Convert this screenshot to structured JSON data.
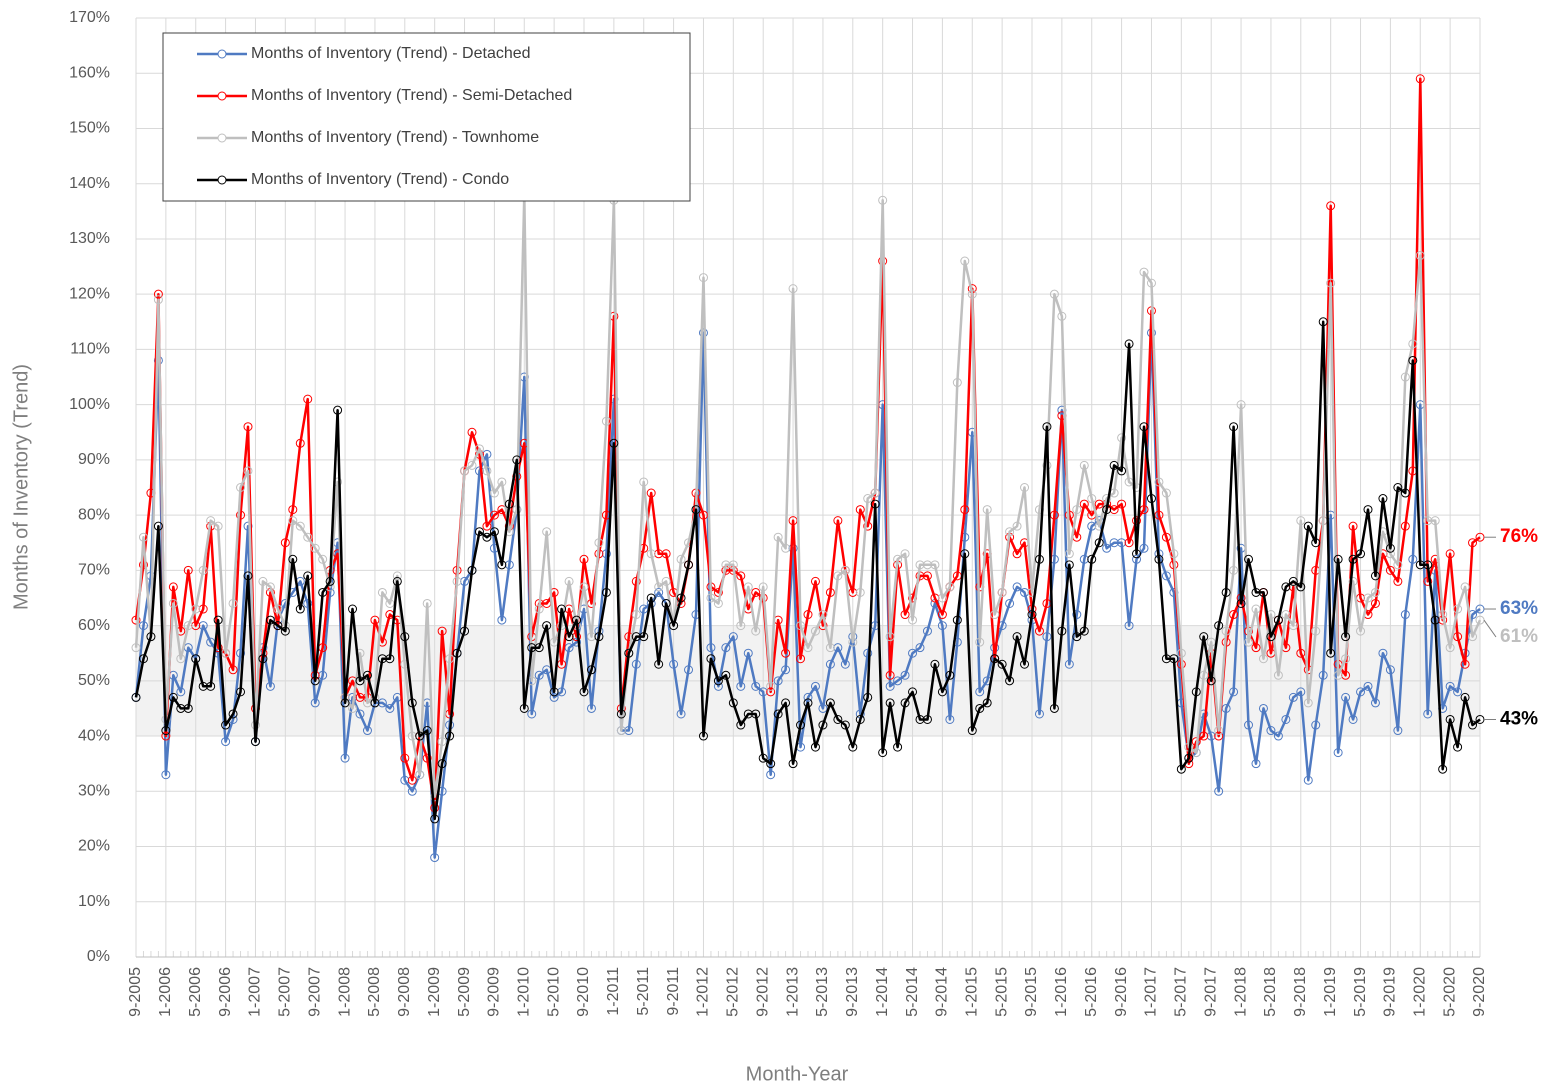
{
  "chart_data": {
    "type": "line",
    "y_label": "Months of Inventory (Trend)",
    "x_label": "Month-Year",
    "ylim": [
      0,
      170
    ],
    "yticks": [
      {
        "value": 0,
        "label": "0%"
      },
      {
        "value": 10,
        "label": "10%"
      },
      {
        "value": 20,
        "label": "20%"
      },
      {
        "value": 30,
        "label": "30%"
      },
      {
        "value": 40,
        "label": "40%"
      },
      {
        "value": 50,
        "label": "50%"
      },
      {
        "value": 60,
        "label": "60%"
      },
      {
        "value": 70,
        "label": "70%"
      },
      {
        "value": 80,
        "label": "80%"
      },
      {
        "value": 90,
        "label": "90%"
      },
      {
        "value": 100,
        "label": "100%"
      },
      {
        "value": 110,
        "label": "110%"
      },
      {
        "value": 120,
        "label": "120%"
      },
      {
        "value": 130,
        "label": "130%"
      },
      {
        "value": 140,
        "label": "140%"
      },
      {
        "value": 150,
        "label": "150%"
      },
      {
        "value": 160,
        "label": "160%"
      },
      {
        "value": 170,
        "label": "170%"
      }
    ],
    "grid": true,
    "legend": "upper left",
    "shaded_band": [
      40,
      60
    ],
    "categories": [
      "9-2005",
      null,
      null,
      null,
      "1-2006",
      null,
      null,
      null,
      "5-2006",
      null,
      null,
      null,
      "9-2006",
      null,
      null,
      null,
      "1-2007",
      null,
      null,
      null,
      "5-2007",
      null,
      null,
      null,
      "9-2007",
      null,
      null,
      null,
      "1-2008",
      null,
      null,
      null,
      "5-2008",
      null,
      null,
      null,
      "9-2008",
      null,
      null,
      null,
      "1-2009",
      null,
      null,
      null,
      "5-2009",
      null,
      null,
      null,
      "9-2009",
      null,
      null,
      null,
      "1-2010",
      null,
      null,
      null,
      "5-2010",
      null,
      null,
      null,
      "9-2010",
      null,
      null,
      null,
      "1-2011",
      null,
      null,
      null,
      "5-2011",
      null,
      null,
      null,
      "9-2011",
      null,
      null,
      null,
      "1-2012",
      null,
      null,
      null,
      "5-2012",
      null,
      null,
      null,
      "9-2012",
      null,
      null,
      null,
      "1-2013",
      null,
      null,
      null,
      "5-2013",
      null,
      null,
      null,
      "9-2013",
      null,
      null,
      null,
      "1-2014",
      null,
      null,
      null,
      "5-2014",
      null,
      null,
      null,
      "9-2014",
      null,
      null,
      null,
      "1-2015",
      null,
      null,
      null,
      "5-2015",
      null,
      null,
      null,
      "9-2015",
      null,
      null,
      null,
      "1-2016",
      null,
      null,
      null,
      "5-2016",
      null,
      null,
      null,
      "9-2016",
      null,
      null,
      null,
      "1-2017",
      null,
      null,
      null,
      "5-2017",
      null,
      null,
      null,
      "9-2017",
      null,
      null,
      null,
      "1-2018",
      null,
      null,
      null,
      "5-2018",
      null,
      null,
      null,
      "9-2018",
      null,
      null,
      null,
      "1-2019",
      null,
      null,
      null,
      "5-2019",
      null,
      null,
      null,
      "9-2019",
      null,
      null,
      null,
      "1-2020",
      null,
      null,
      null,
      "5-2020",
      null,
      null,
      null,
      "9-2020"
    ],
    "series": [
      {
        "name": "Months of Inventory (Trend) - Detached",
        "color": "#4f7ac2",
        "end_label": "63%",
        "values": [
          47,
          60,
          69,
          108,
          33,
          51,
          48,
          56,
          54,
          60,
          57,
          55,
          39,
          43,
          55,
          78,
          39,
          56,
          49,
          61,
          64,
          66,
          68,
          64,
          46,
          51,
          66,
          75,
          36,
          47,
          44,
          41,
          46,
          46,
          45,
          47,
          32,
          30,
          33,
          46,
          18,
          30,
          42,
          55,
          68,
          70,
          88,
          91,
          74,
          61,
          71,
          81,
          105,
          44,
          51,
          52,
          47,
          48,
          56,
          57,
          63,
          45,
          59,
          73,
          101,
          41,
          41,
          53,
          63,
          64,
          66,
          64,
          53,
          44,
          52,
          62,
          113,
          56,
          49,
          56,
          58,
          49,
          55,
          49,
          48,
          33,
          50,
          52,
          74,
          38,
          47,
          49,
          45,
          53,
          56,
          53,
          58,
          44,
          55,
          60,
          100,
          49,
          50,
          51,
          55,
          56,
          59,
          64,
          60,
          43,
          57,
          76,
          95,
          48,
          50,
          56,
          60,
          64,
          67,
          66,
          61,
          44,
          58,
          72,
          99,
          53,
          62,
          72,
          78,
          79,
          74,
          75,
          75,
          60,
          72,
          74,
          113,
          73,
          69,
          66,
          46,
          36,
          37,
          44,
          40,
          30,
          45,
          48,
          74,
          42,
          35,
          45,
          41,
          40,
          43,
          47,
          48,
          32,
          42,
          51,
          80,
          37,
          47,
          43,
          48,
          49,
          46,
          55,
          52,
          41,
          62,
          72,
          100,
          44,
          70,
          45,
          49,
          48,
          55,
          62,
          63
        ]
      },
      {
        "name": "Months of Inventory (Trend) - Semi-Detached",
        "color": "#ff0000",
        "end_label": "76%",
        "values": [
          61,
          71,
          84,
          120,
          40,
          67,
          59,
          70,
          60,
          63,
          78,
          56,
          55,
          52,
          80,
          96,
          45,
          55,
          66,
          60,
          75,
          81,
          93,
          101,
          51,
          56,
          70,
          73,
          47,
          50,
          47,
          47,
          61,
          57,
          62,
          61,
          36,
          32,
          40,
          36,
          27,
          59,
          44,
          70,
          88,
          95,
          91,
          78,
          80,
          81,
          78,
          87,
          93,
          58,
          64,
          64,
          66,
          53,
          63,
          58,
          72,
          64,
          73,
          80,
          116,
          45,
          58,
          68,
          74,
          84,
          73,
          73,
          66,
          64,
          71,
          84,
          80,
          67,
          66,
          70,
          70,
          69,
          63,
          66,
          65,
          48,
          61,
          55,
          79,
          54,
          62,
          68,
          60,
          66,
          79,
          70,
          66,
          81,
          78,
          84,
          126,
          51,
          71,
          62,
          65,
          69,
          69,
          65,
          62,
          67,
          69,
          81,
          121,
          67,
          73,
          54,
          66,
          76,
          73,
          75,
          63,
          59,
          64,
          80,
          98,
          80,
          76,
          82,
          80,
          82,
          82,
          81,
          82,
          75,
          79,
          81,
          117,
          80,
          76,
          71,
          53,
          35,
          39,
          40,
          55,
          40,
          57,
          62,
          65,
          59,
          56,
          66,
          55,
          61,
          56,
          67,
          55,
          52,
          70,
          79,
          136,
          53,
          51,
          78,
          65,
          62,
          64,
          73,
          70,
          68,
          78,
          88,
          159,
          68,
          72,
          61,
          73,
          58,
          53,
          75,
          76
        ]
      },
      {
        "name": "Months of Inventory (Trend) - Townhome",
        "color": "#bfbfbf",
        "end_label": "61%",
        "values": [
          56,
          76,
          58,
          119,
          43,
          64,
          54,
          60,
          63,
          70,
          79,
          78,
          55,
          64,
          85,
          88,
          42,
          68,
          67,
          63,
          60,
          79,
          78,
          76,
          74,
          72,
          67,
          86,
          47,
          45,
          55,
          46,
          47,
          66,
          64,
          69,
          53,
          40,
          33,
          64,
          29,
          39,
          54,
          68,
          88,
          89,
          92,
          88,
          84,
          86,
          77,
          81,
          138,
          50,
          63,
          77,
          57,
          60,
          68,
          60,
          67,
          58,
          75,
          97,
          137,
          41,
          55,
          62,
          86,
          73,
          67,
          68,
          60,
          72,
          75,
          81,
          123,
          65,
          64,
          71,
          71,
          60,
          67,
          59,
          67,
          49,
          76,
          74,
          121,
          60,
          56,
          59,
          62,
          56,
          69,
          70,
          57,
          66,
          83,
          84,
          137,
          58,
          72,
          73,
          61,
          71,
          71,
          71,
          65,
          67,
          104,
          126,
          120,
          57,
          81,
          62,
          66,
          77,
          78,
          85,
          66,
          81,
          89,
          120,
          116,
          73,
          81,
          89,
          83,
          78,
          83,
          84,
          94,
          86,
          85,
          124,
          122,
          86,
          84,
          73,
          55,
          38,
          37,
          51,
          57,
          41,
          59,
          70,
          100,
          57,
          63,
          54,
          62,
          51,
          62,
          60,
          79,
          46,
          59,
          79,
          122,
          51,
          54,
          68,
          59,
          65,
          66,
          77,
          73,
          71,
          105,
          111,
          127,
          79,
          79,
          62,
          56,
          63,
          67,
          58,
          61
        ]
      },
      {
        "name": "Months of Inventory (Trend) - Condo",
        "color": "#000000",
        "end_label": "43%",
        "values": [
          47,
          54,
          58,
          78,
          41,
          47,
          45,
          45,
          54,
          49,
          49,
          61,
          42,
          44,
          48,
          69,
          39,
          54,
          61,
          60,
          59,
          72,
          63,
          69,
          50,
          66,
          68,
          99,
          46,
          63,
          50,
          51,
          46,
          54,
          54,
          68,
          58,
          46,
          40,
          41,
          25,
          35,
          40,
          55,
          59,
          70,
          77,
          76,
          77,
          71,
          82,
          90,
          45,
          56,
          56,
          60,
          48,
          63,
          58,
          61,
          48,
          52,
          58,
          66,
          93,
          44,
          55,
          58,
          58,
          65,
          53,
          64,
          60,
          65,
          71,
          81,
          40,
          54,
          50,
          51,
          46,
          42,
          44,
          44,
          36,
          35,
          44,
          46,
          35,
          42,
          46,
          38,
          42,
          46,
          43,
          42,
          38,
          43,
          47,
          82,
          37,
          46,
          38,
          46,
          48,
          43,
          43,
          53,
          48,
          51,
          61,
          73,
          41,
          45,
          46,
          54,
          53,
          50,
          58,
          53,
          62,
          72,
          96,
          45,
          59,
          71,
          58,
          59,
          72,
          75,
          81,
          89,
          88,
          111,
          73,
          96,
          83,
          72,
          54,
          54,
          34,
          36,
          48,
          58,
          50,
          60,
          66,
          96,
          64,
          72,
          66,
          66,
          58,
          61,
          67,
          68,
          67,
          78,
          75,
          115,
          55,
          72,
          58,
          72,
          73,
          81,
          69,
          83,
          74,
          85,
          84,
          108,
          71,
          71,
          61,
          34,
          43,
          38,
          47,
          42,
          43
        ]
      }
    ]
  }
}
